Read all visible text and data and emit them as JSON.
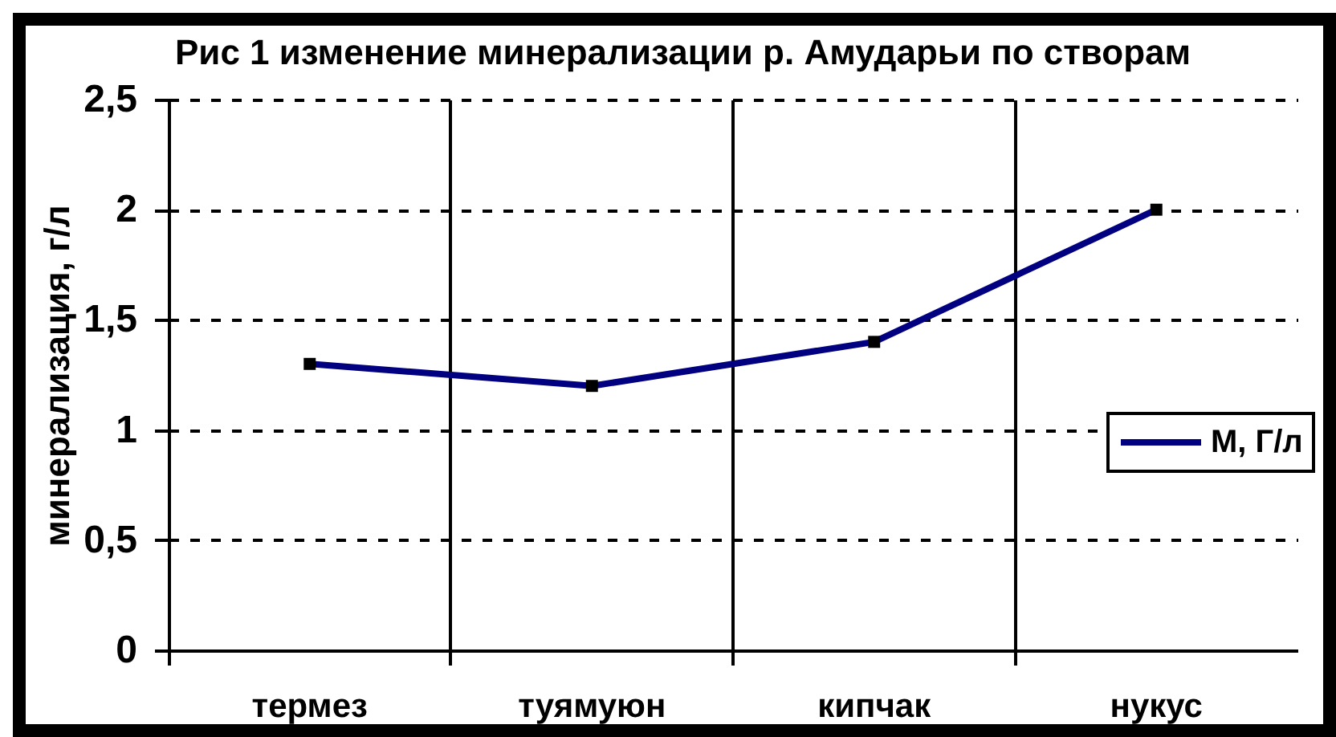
{
  "chart_data": {
    "type": "line",
    "title": "Рис 1 изменение минерализации р. Амударьи по створам",
    "ylabel": "минерализация, г/л",
    "categories": [
      "термез",
      "туямуюн",
      "кипчак",
      "нукус"
    ],
    "series": [
      {
        "name": "М, Г/л",
        "color": "#000080",
        "values": [
          1.3,
          1.2,
          1.4,
          2.0
        ]
      }
    ],
    "ylim": [
      0,
      2.5
    ],
    "yticks": [
      0,
      {
        "value": 0.5,
        "label": "0,5"
      },
      1,
      {
        "value": 1.5,
        "label": "1,5"
      },
      2,
      {
        "value": 2.5,
        "label": "2,5"
      }
    ],
    "grid": true,
    "legend": "right",
    "marker": "square"
  }
}
